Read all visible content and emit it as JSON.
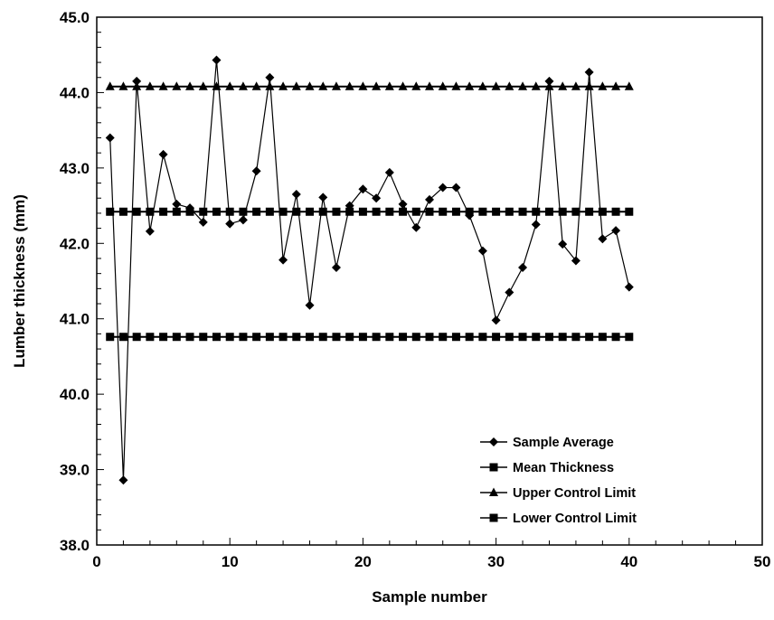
{
  "chart_data": {
    "type": "line",
    "xlabel": "Sample number",
    "ylabel": "Lumber thickness (mm)",
    "xlim": [
      0,
      50
    ],
    "ylim": [
      38.0,
      45.0
    ],
    "x_ticks": [
      "0",
      "10",
      "20",
      "30",
      "40",
      "50"
    ],
    "y_ticks": [
      "38.0",
      "39.0",
      "40.0",
      "41.0",
      "42.0",
      "43.0",
      "44.0",
      "45.0"
    ],
    "grid": false,
    "legend_position": "bottom-right",
    "x": [
      1,
      2,
      3,
      4,
      5,
      6,
      7,
      8,
      9,
      10,
      11,
      12,
      13,
      14,
      15,
      16,
      17,
      18,
      19,
      20,
      21,
      22,
      23,
      24,
      25,
      26,
      27,
      28,
      29,
      30,
      31,
      32,
      33,
      34,
      35,
      36,
      37,
      38,
      39,
      40
    ],
    "series": [
      {
        "name": "Sample Average",
        "marker": "diamond",
        "values": [
          43.4,
          38.86,
          44.15,
          42.16,
          43.18,
          42.52,
          42.47,
          42.28,
          44.43,
          42.26,
          42.31,
          42.96,
          44.2,
          41.78,
          42.65,
          41.18,
          42.61,
          41.68,
          42.5,
          42.72,
          42.6,
          42.94,
          42.52,
          42.21,
          42.58,
          42.74,
          42.74,
          42.37,
          41.9,
          40.98,
          41.35,
          41.68,
          42.25,
          44.15,
          41.99,
          41.77,
          44.27,
          42.06,
          42.17,
          41.42
        ]
      },
      {
        "name": "Mean Thickness",
        "marker": "square",
        "values": [
          42.42,
          42.42,
          42.42,
          42.42,
          42.42,
          42.42,
          42.42,
          42.42,
          42.42,
          42.42,
          42.42,
          42.42,
          42.42,
          42.42,
          42.42,
          42.42,
          42.42,
          42.42,
          42.42,
          42.42,
          42.42,
          42.42,
          42.42,
          42.42,
          42.42,
          42.42,
          42.42,
          42.42,
          42.42,
          42.42,
          42.42,
          42.42,
          42.42,
          42.42,
          42.42,
          42.42,
          42.42,
          42.42,
          42.42,
          42.42
        ]
      },
      {
        "name": "Upper Control Limit",
        "marker": "triangle",
        "values": [
          44.08,
          44.08,
          44.08,
          44.08,
          44.08,
          44.08,
          44.08,
          44.08,
          44.08,
          44.08,
          44.08,
          44.08,
          44.08,
          44.08,
          44.08,
          44.08,
          44.08,
          44.08,
          44.08,
          44.08,
          44.08,
          44.08,
          44.08,
          44.08,
          44.08,
          44.08,
          44.08,
          44.08,
          44.08,
          44.08,
          44.08,
          44.08,
          44.08,
          44.08,
          44.08,
          44.08,
          44.08,
          44.08,
          44.08,
          44.08
        ]
      },
      {
        "name": "Lower Control Limit",
        "marker": "square",
        "values": [
          40.76,
          40.76,
          40.76,
          40.76,
          40.76,
          40.76,
          40.76,
          40.76,
          40.76,
          40.76,
          40.76,
          40.76,
          40.76,
          40.76,
          40.76,
          40.76,
          40.76,
          40.76,
          40.76,
          40.76,
          40.76,
          40.76,
          40.76,
          40.76,
          40.76,
          40.76,
          40.76,
          40.76,
          40.76,
          40.76,
          40.76,
          40.76,
          40.76,
          40.76,
          40.76,
          40.76,
          40.76,
          40.76,
          40.76,
          40.76
        ]
      }
    ]
  }
}
